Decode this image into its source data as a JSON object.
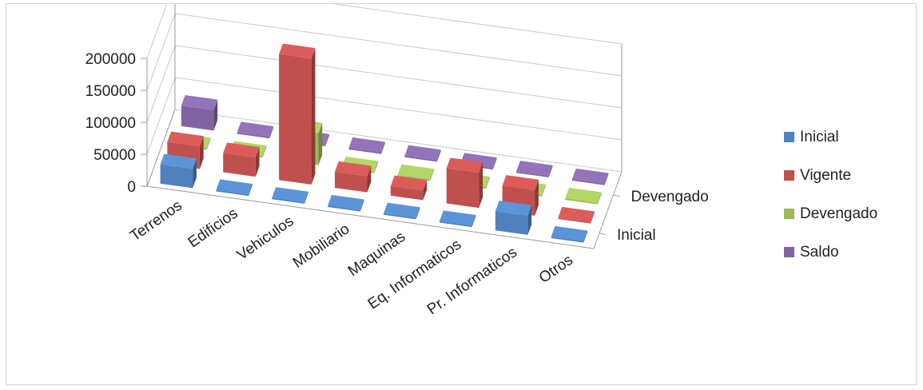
{
  "chart_data": {
    "type": "bar",
    "subtype": "3d-column",
    "categories": [
      "Terrenos",
      "Edificios",
      "Vehiculos",
      "Mobiliario",
      "Maquinas",
      "Eq. Informaticos",
      "Pr. Informaticos",
      "Otros"
    ],
    "series": [
      {
        "name": "Inicial",
        "color": "#4f81bd",
        "values": [
          30000,
          0,
          0,
          0,
          0,
          0,
          30000,
          0
        ]
      },
      {
        "name": "Vigente",
        "color": "#c0504d",
        "values": [
          35000,
          30000,
          197000,
          25000,
          15000,
          55000,
          40000,
          0
        ]
      },
      {
        "name": "Devengado",
        "color": "#9bbb59",
        "values": [
          0,
          0,
          50000,
          0,
          0,
          0,
          0,
          0
        ]
      },
      {
        "name": "Saldo",
        "color": "#8064a2",
        "values": [
          32000,
          0,
          0,
          0,
          0,
          0,
          0,
          0
        ]
      }
    ],
    "series_axis_labels": [
      "Inicial",
      "Devengado"
    ],
    "yticks": [
      0,
      50000,
      100000,
      150000,
      200000
    ],
    "ylim": [
      0,
      200000
    ],
    "legend": "right",
    "grid": true,
    "title": "",
    "xlabel": "",
    "ylabel": ""
  }
}
